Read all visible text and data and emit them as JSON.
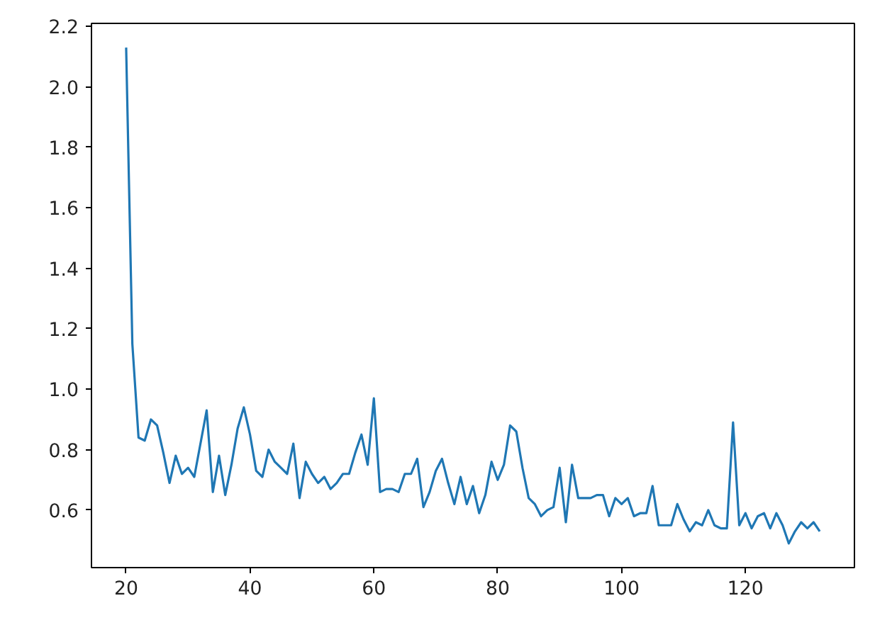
{
  "chart_data": {
    "type": "line",
    "x": [
      20,
      21,
      22,
      23,
      24,
      25,
      26,
      27,
      28,
      29,
      30,
      31,
      32,
      33,
      34,
      35,
      36,
      37,
      38,
      39,
      40,
      41,
      42,
      43,
      44,
      45,
      46,
      47,
      48,
      49,
      50,
      51,
      52,
      53,
      54,
      55,
      56,
      57,
      58,
      59,
      60,
      61,
      62,
      63,
      64,
      65,
      66,
      67,
      68,
      69,
      70,
      71,
      72,
      73,
      74,
      75,
      76,
      77,
      78,
      79,
      80,
      81,
      82,
      83,
      84,
      85,
      86,
      87,
      88,
      89,
      90,
      91,
      92,
      93,
      94,
      95,
      96,
      97,
      98,
      99,
      100,
      101,
      102,
      103,
      104,
      105,
      106,
      107,
      108,
      109,
      110,
      111,
      112,
      113,
      114,
      115,
      116,
      117,
      118,
      119,
      120,
      121,
      122,
      123,
      124,
      125,
      126,
      127,
      128,
      129,
      130,
      131,
      132
    ],
    "series": [
      {
        "color": "#1f77b4",
        "values": [
          2.13,
          1.15,
          0.84,
          0.83,
          0.9,
          0.88,
          0.79,
          0.69,
          0.78,
          0.72,
          0.74,
          0.71,
          0.82,
          0.93,
          0.66,
          0.78,
          0.65,
          0.75,
          0.87,
          0.94,
          0.85,
          0.73,
          0.71,
          0.8,
          0.76,
          0.74,
          0.72,
          0.82,
          0.64,
          0.76,
          0.72,
          0.69,
          0.71,
          0.67,
          0.69,
          0.72,
          0.72,
          0.79,
          0.85,
          0.75,
          0.97,
          0.66,
          0.67,
          0.67,
          0.66,
          0.72,
          0.72,
          0.77,
          0.61,
          0.66,
          0.73,
          0.77,
          0.69,
          0.62,
          0.71,
          0.62,
          0.68,
          0.59,
          0.65,
          0.76,
          0.7,
          0.75,
          0.88,
          0.86,
          0.74,
          0.64,
          0.62,
          0.58,
          0.6,
          0.61,
          0.74,
          0.56,
          0.75,
          0.64,
          0.64,
          0.64,
          0.65,
          0.65,
          0.58,
          0.64,
          0.62,
          0.64,
          0.58,
          0.59,
          0.59,
          0.68,
          0.55,
          0.55,
          0.55,
          0.62,
          0.57,
          0.53,
          0.56,
          0.55,
          0.6,
          0.55,
          0.54,
          0.54,
          0.89,
          0.55,
          0.59,
          0.54,
          0.58,
          0.59,
          0.54,
          0.59,
          0.55,
          0.49,
          0.53,
          0.56,
          0.54,
          0.56,
          0.53
        ]
      }
    ],
    "xlim": [
      14.4,
      137.6
    ],
    "ylim": [
      0.41,
      2.21
    ],
    "xticks": [
      20,
      40,
      60,
      80,
      100,
      120
    ],
    "yticks": [
      {
        "value": 0.6,
        "label": "0.6"
      },
      {
        "value": 0.8,
        "label": "0.8"
      },
      {
        "value": 1.0,
        "label": "1.0"
      },
      {
        "value": 1.2,
        "label": "1.2"
      },
      {
        "value": 1.4,
        "label": "1.4"
      },
      {
        "value": 1.6,
        "label": "1.6"
      },
      {
        "value": 1.8,
        "label": "1.8"
      },
      {
        "value": 2.0,
        "label": "2.0"
      },
      {
        "value": 2.2,
        "label": "2.2"
      }
    ],
    "grid": false,
    "marker": "none",
    "line_style": "solid"
  }
}
